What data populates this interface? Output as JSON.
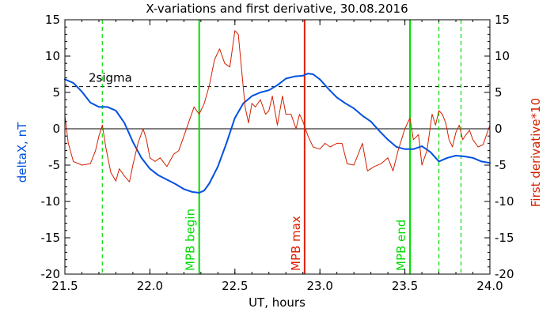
{
  "chart_data": {
    "type": "line",
    "title": "X-variations and first derivative, 30.08.2016",
    "xlabel": "UT, hours",
    "ylabel_left": "deltaX, nT",
    "ylabel_right": "First derivative*10",
    "xlim": [
      21.5,
      24.0
    ],
    "ylim": [
      -20,
      15
    ],
    "xticks": [
      21.5,
      22.0,
      22.5,
      23.0,
      23.5,
      24.0
    ],
    "xtick_labels": [
      "21.5",
      "22.0",
      "22.5",
      "23.0",
      "23.5",
      "24.0"
    ],
    "yticks": [
      -20,
      -15,
      -10,
      -5,
      0,
      5,
      10,
      15
    ],
    "ytick_labels": [
      "-20",
      "-15",
      "-10",
      "-5",
      "0",
      "5",
      "10",
      "15"
    ],
    "grid": false,
    "colors": {
      "deltaX": "#0050e0",
      "derivative": "#d22000",
      "mpb_boundary": "#00dd00",
      "mpb_max": "#e02000",
      "threshold": "#000000"
    },
    "threshold": {
      "label": "2sigma",
      "value": 5.8
    },
    "vlines": [
      {
        "x": 21.72,
        "style": "dashed",
        "color": "#00dd00",
        "label": ""
      },
      {
        "x": 22.29,
        "style": "solid",
        "color": "#00dd00",
        "label": "MPB begin"
      },
      {
        "x": 22.91,
        "style": "solid",
        "color": "#e02000",
        "label": "MPB max"
      },
      {
        "x": 23.53,
        "style": "solid",
        "color": "#00dd00",
        "label": "MPB end"
      },
      {
        "x": 23.7,
        "style": "dashed",
        "color": "#00dd00",
        "label": ""
      },
      {
        "x": 23.83,
        "style": "dashed",
        "color": "#00dd00",
        "label": ""
      }
    ],
    "series": [
      {
        "name": "deltaX",
        "axis": "left",
        "x": [
          21.5,
          21.55,
          21.6,
          21.65,
          21.7,
          21.75,
          21.8,
          21.85,
          21.9,
          21.95,
          22.0,
          22.05,
          22.1,
          22.15,
          22.2,
          22.25,
          22.29,
          22.32,
          22.35,
          22.4,
          22.45,
          22.5,
          22.55,
          22.6,
          22.65,
          22.7,
          22.75,
          22.8,
          22.85,
          22.9,
          22.93,
          22.96,
          23.0,
          23.05,
          23.1,
          23.15,
          23.2,
          23.25,
          23.3,
          23.35,
          23.4,
          23.45,
          23.5,
          23.55,
          23.6,
          23.65,
          23.7,
          23.75,
          23.8,
          23.85,
          23.9,
          23.95,
          24.0
        ],
        "values": [
          6.8,
          6.3,
          5.1,
          3.6,
          3.0,
          3.0,
          2.5,
          0.8,
          -1.8,
          -4.0,
          -5.5,
          -6.4,
          -7.0,
          -7.6,
          -8.3,
          -8.7,
          -8.8,
          -8.5,
          -7.5,
          -5.2,
          -2.0,
          1.5,
          3.5,
          4.5,
          5.0,
          5.3,
          6.0,
          6.9,
          7.2,
          7.3,
          7.6,
          7.5,
          6.8,
          5.5,
          4.3,
          3.5,
          2.8,
          1.8,
          1.0,
          -0.3,
          -1.5,
          -2.5,
          -2.8,
          -2.8,
          -2.4,
          -3.2,
          -4.5,
          -4.0,
          -3.7,
          -3.8,
          -4.0,
          -4.5,
          -4.7
        ]
      },
      {
        "name": "First derivative*10",
        "axis": "right",
        "x": [
          21.5,
          21.52,
          21.55,
          21.6,
          21.65,
          21.68,
          21.7,
          21.72,
          21.74,
          21.77,
          21.8,
          21.82,
          21.85,
          21.88,
          21.9,
          21.93,
          21.96,
          21.98,
          22.0,
          22.03,
          22.06,
          22.1,
          22.14,
          22.17,
          22.2,
          22.23,
          22.26,
          22.29,
          22.32,
          22.35,
          22.38,
          22.41,
          22.44,
          22.47,
          22.5,
          22.52,
          22.54,
          22.56,
          22.58,
          22.6,
          22.62,
          22.65,
          22.68,
          22.7,
          22.72,
          22.75,
          22.78,
          22.8,
          22.83,
          22.86,
          22.88,
          22.9,
          22.93,
          22.96,
          23.0,
          23.03,
          23.06,
          23.1,
          23.13,
          23.16,
          23.2,
          23.25,
          23.28,
          23.32,
          23.36,
          23.4,
          23.43,
          23.46,
          23.5,
          23.53,
          23.55,
          23.58,
          23.6,
          23.63,
          23.66,
          23.68,
          23.7,
          23.72,
          23.74,
          23.76,
          23.78,
          23.8,
          23.82,
          23.84,
          23.86,
          23.88,
          23.9,
          23.93,
          23.96,
          24.0
        ],
        "values": [
          1.8,
          -2.0,
          -4.5,
          -5.0,
          -4.8,
          -3.0,
          -1.0,
          0.5,
          -2.5,
          -6.0,
          -7.2,
          -5.5,
          -6.5,
          -7.3,
          -5.0,
          -2.0,
          0.0,
          -1.5,
          -4.0,
          -4.5,
          -4.0,
          -5.2,
          -3.5,
          -3.0,
          -1.0,
          1.0,
          3.0,
          2.0,
          3.5,
          6.0,
          9.5,
          11.0,
          9.0,
          8.5,
          13.5,
          13.0,
          8.0,
          3.0,
          0.8,
          3.5,
          3.0,
          4.0,
          2.0,
          2.5,
          4.5,
          0.5,
          4.5,
          2.0,
          2.0,
          0.0,
          2.0,
          1.0,
          -1.0,
          -2.5,
          -2.8,
          -2.0,
          -2.5,
          -2.0,
          -2.0,
          -4.8,
          -5.0,
          -2.0,
          -5.8,
          -5.2,
          -4.8,
          -4.0,
          -5.8,
          -3.0,
          0.0,
          1.5,
          -1.5,
          -0.8,
          -5.0,
          -3.0,
          2.0,
          0.5,
          2.5,
          2.0,
          0.8,
          -1.5,
          -2.5,
          -0.5,
          0.5,
          -1.5,
          -0.8,
          -0.2,
          -1.5,
          -2.5,
          -2.2,
          0.5
        ]
      }
    ]
  }
}
